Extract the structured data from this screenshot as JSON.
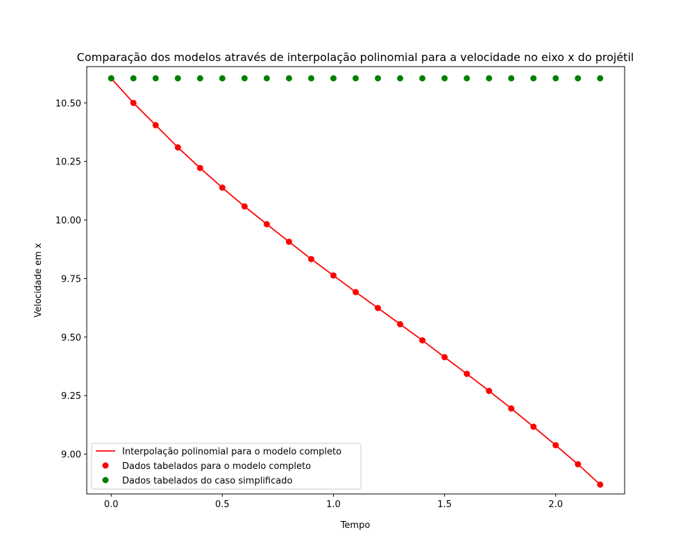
{
  "chart_data": {
    "type": "line",
    "title": "Comparação dos modelos através de interpolação polinomial para a velocidade no eixo x do projétil",
    "xlabel": "Tempo",
    "ylabel": "Velocidade em x",
    "xlim": [
      -0.11,
      2.31
    ],
    "ylim": [
      8.83,
      10.655
    ],
    "x_ticks": [
      0.0,
      0.5,
      1.0,
      1.5,
      2.0
    ],
    "x_tick_labels": [
      "0.0",
      "0.5",
      "1.0",
      "1.5",
      "2.0"
    ],
    "y_ticks": [
      9.0,
      9.25,
      9.5,
      9.75,
      10.0,
      10.25,
      10.5
    ],
    "y_tick_labels": [
      "9.00",
      "9.25",
      "9.50",
      "9.75",
      "10.00",
      "10.25",
      "10.50"
    ],
    "grid": false,
    "legend_position": "lower-left",
    "series": [
      {
        "name": "Interpolação polinomial para o modelo completo",
        "kind": "line",
        "color": "#ff0000",
        "x": [
          0.0,
          0.1,
          0.2,
          0.3,
          0.4,
          0.5,
          0.6,
          0.7,
          0.8,
          0.9,
          1.0,
          1.1,
          1.2,
          1.3,
          1.4,
          1.5,
          1.6,
          1.7,
          1.8,
          1.9,
          2.0,
          2.1,
          2.2
        ],
        "y": [
          10.605,
          10.5,
          10.405,
          10.31,
          10.222,
          10.138,
          10.058,
          9.982,
          9.907,
          9.833,
          9.763,
          9.692,
          9.624,
          9.555,
          9.486,
          9.414,
          9.343,
          9.27,
          9.195,
          9.117,
          9.038,
          8.957,
          8.87
        ]
      },
      {
        "name": "Dados tabelados para o modelo completo",
        "kind": "scatter",
        "color": "#ff0000",
        "x": [
          0.0,
          0.1,
          0.2,
          0.3,
          0.4,
          0.5,
          0.6,
          0.7,
          0.8,
          0.9,
          1.0,
          1.1,
          1.2,
          1.3,
          1.4,
          1.5,
          1.6,
          1.7,
          1.8,
          1.9,
          2.0,
          2.1,
          2.2
        ],
        "y": [
          10.605,
          10.5,
          10.405,
          10.31,
          10.222,
          10.138,
          10.058,
          9.982,
          9.907,
          9.833,
          9.763,
          9.692,
          9.624,
          9.555,
          9.486,
          9.414,
          9.343,
          9.27,
          9.195,
          9.117,
          9.038,
          8.957,
          8.87
        ]
      },
      {
        "name": "Dados tabelados do caso simplificado",
        "kind": "scatter",
        "color": "#008000",
        "x": [
          0.0,
          0.1,
          0.2,
          0.3,
          0.4,
          0.5,
          0.6,
          0.7,
          0.8,
          0.9,
          1.0,
          1.1,
          1.2,
          1.3,
          1.4,
          1.5,
          1.6,
          1.7,
          1.8,
          1.9,
          2.0,
          2.1,
          2.2
        ],
        "y": [
          10.605,
          10.605,
          10.605,
          10.605,
          10.605,
          10.605,
          10.605,
          10.605,
          10.605,
          10.605,
          10.605,
          10.605,
          10.605,
          10.605,
          10.605,
          10.605,
          10.605,
          10.605,
          10.605,
          10.605,
          10.605,
          10.605,
          10.605
        ]
      }
    ]
  }
}
